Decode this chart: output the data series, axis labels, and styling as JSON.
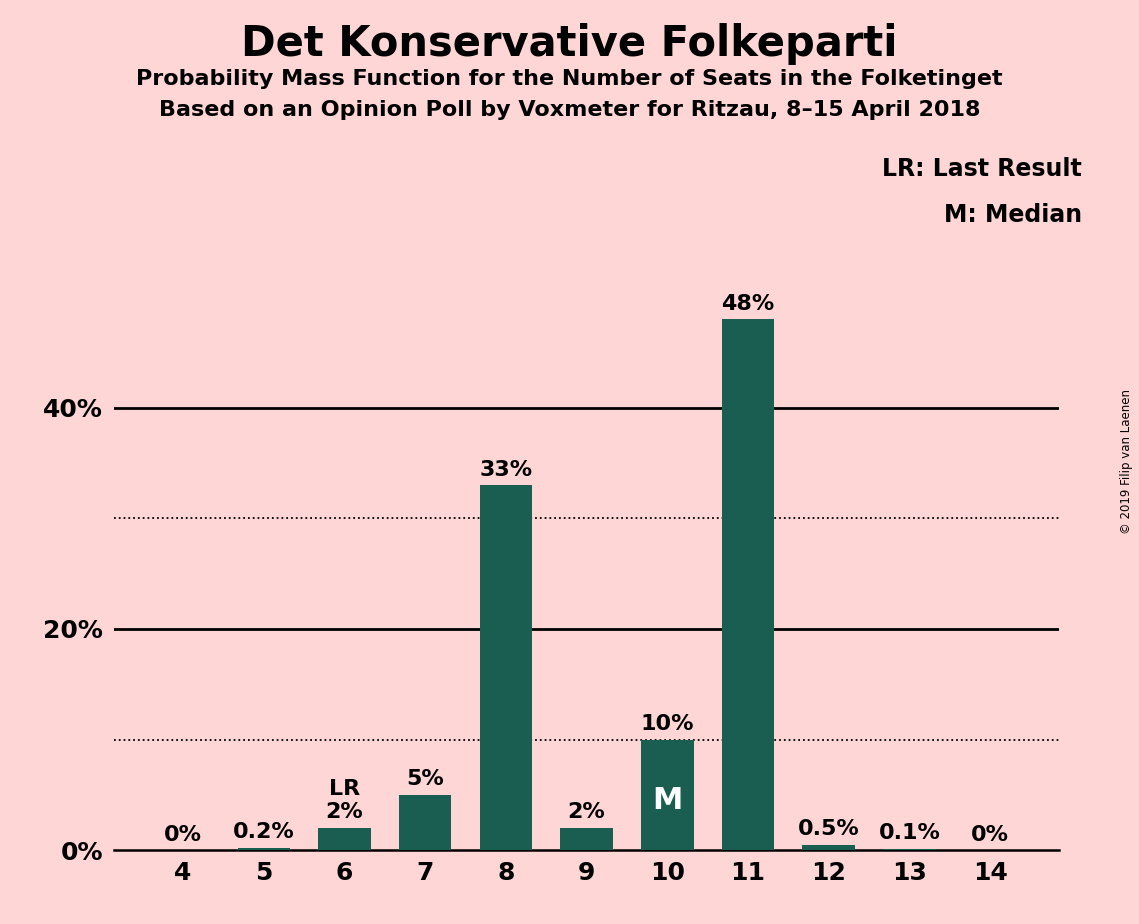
{
  "title": "Det Konservative Folkeparti",
  "subtitle1": "Probability Mass Function for the Number of Seats in the Folketinget",
  "subtitle2": "Based on an Opinion Poll by Voxmeter for Ritzau, 8–15 April 2018",
  "copyright": "© 2019 Filip van Laenen",
  "categories": [
    4,
    5,
    6,
    7,
    8,
    9,
    10,
    11,
    12,
    13,
    14
  ],
  "values": [
    0.0,
    0.2,
    2.0,
    5.0,
    33.0,
    2.0,
    10.0,
    48.0,
    0.5,
    0.1,
    0.0
  ],
  "labels": [
    "0%",
    "0.2%",
    "2%",
    "5%",
    "33%",
    "2%",
    "10%",
    "48%",
    "0.5%",
    "0.1%",
    "0%"
  ],
  "bar_color": "#1a5e52",
  "background_color": "#ffd6d6",
  "last_result_seat": 6,
  "median_seat": 10,
  "legend_lr": "LR: Last Result",
  "legend_m": "M: Median",
  "dotted_lines": [
    10,
    30
  ],
  "solid_lines": [
    20,
    40
  ],
  "ylim": [
    0,
    56
  ],
  "ytick_positions": [
    0,
    20,
    40
  ],
  "ytick_labels": [
    "0%",
    "20%",
    "40%"
  ]
}
